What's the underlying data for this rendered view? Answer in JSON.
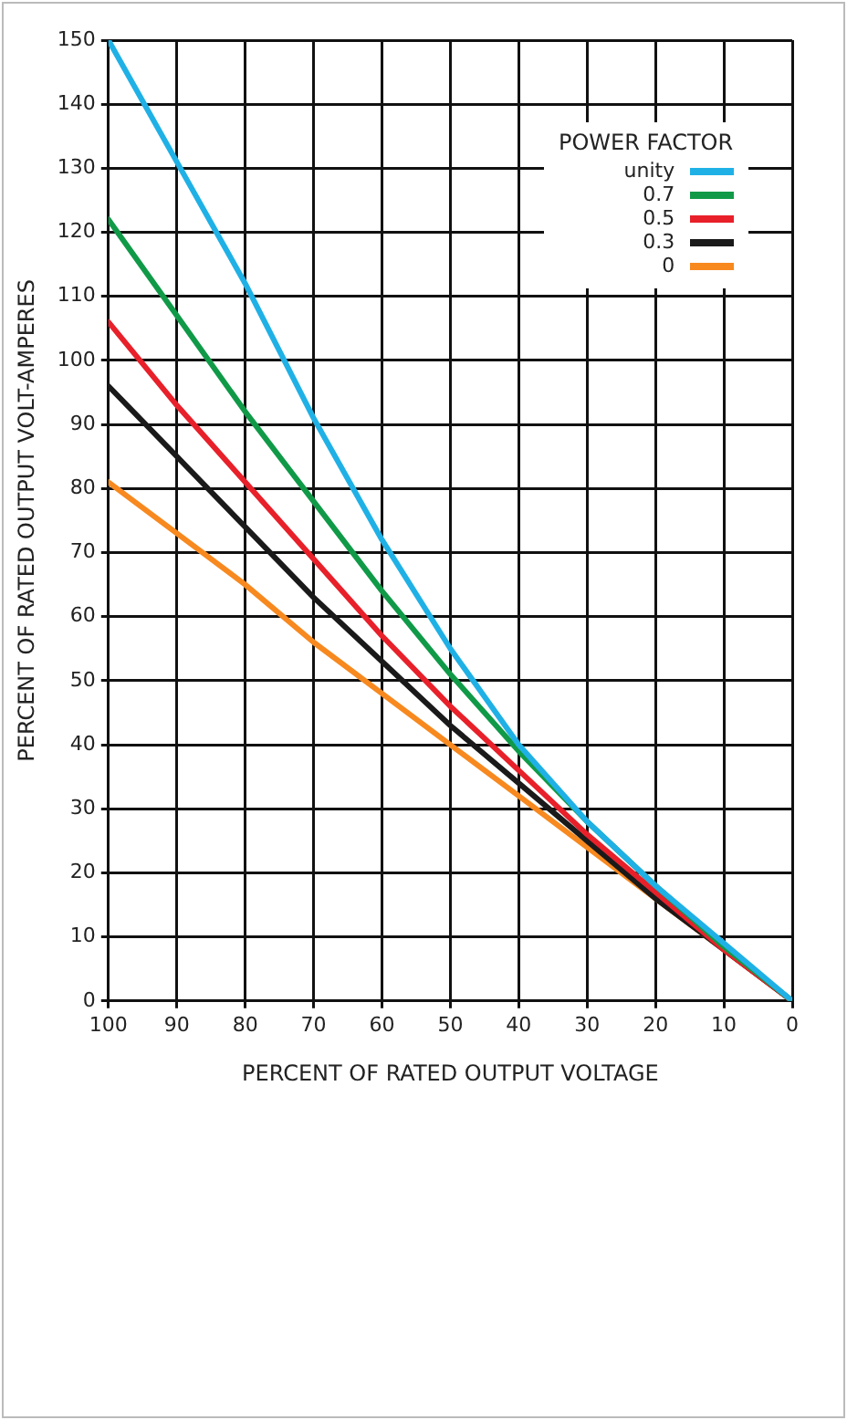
{
  "chart_data": {
    "type": "line",
    "xlabel": "PERCENT OF RATED OUTPUT VOLTAGE",
    "ylabel": "PERCENT OF RATED OUTPUT VOLT-AMPERES",
    "legend_title": "POWER FACTOR",
    "x": [
      100,
      90,
      80,
      70,
      60,
      50,
      40,
      30,
      20,
      10,
      0
    ],
    "series": [
      {
        "name": "unity",
        "color": "#1fb1e6",
        "values": [
          150,
          131,
          112,
          91,
          72,
          55,
          40,
          28,
          18,
          9,
          0
        ]
      },
      {
        "name": "0.7",
        "color": "#109a48",
        "values": [
          122,
          107,
          92,
          78,
          64,
          51,
          39,
          28,
          18,
          8.5,
          0
        ]
      },
      {
        "name": "0.5",
        "color": "#e8202a",
        "values": [
          106,
          93,
          81,
          69,
          57,
          46,
          36,
          26,
          17,
          8,
          0
        ]
      },
      {
        "name": "0.3",
        "color": "#1a1a1a",
        "values": [
          96,
          85,
          74,
          63,
          53,
          43,
          34,
          25,
          16,
          8,
          0
        ]
      },
      {
        "name": "0",
        "color": "#f7891f",
        "values": [
          81,
          73,
          65,
          56,
          48,
          40,
          32,
          24,
          16,
          8,
          0
        ]
      }
    ],
    "xlim": [
      100,
      0
    ],
    "xticks": [
      100,
      90,
      80,
      70,
      60,
      50,
      40,
      30,
      20,
      10,
      0
    ],
    "ylim": [
      0,
      150
    ],
    "yticks": [
      0,
      10,
      20,
      30,
      40,
      50,
      60,
      70,
      80,
      90,
      100,
      110,
      120,
      130,
      140,
      150
    ],
    "grid": true,
    "legend": "top right",
    "marker": "none",
    "line_style": "solid"
  }
}
